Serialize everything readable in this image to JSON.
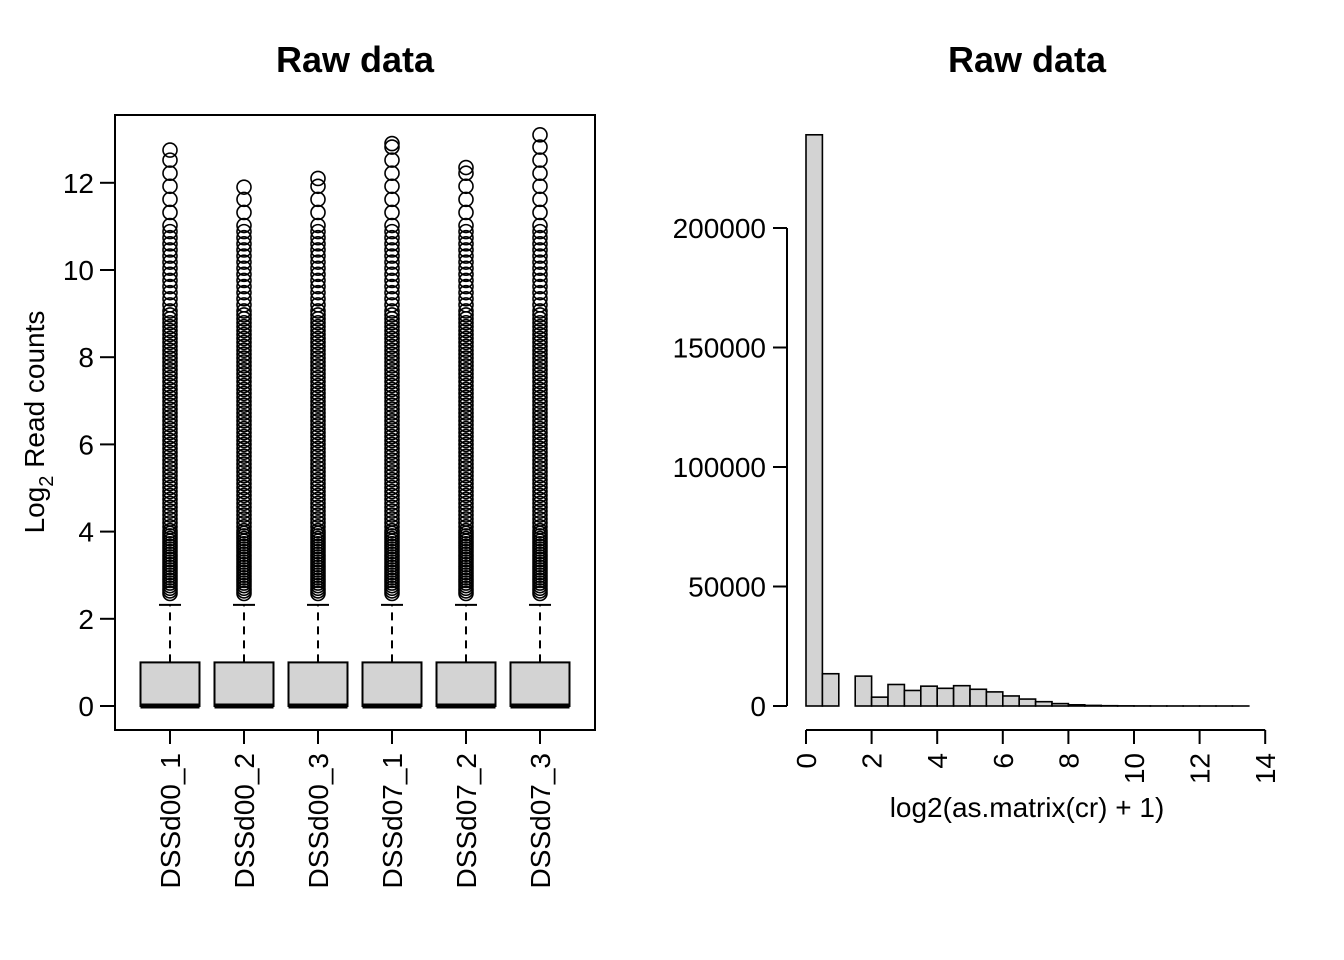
{
  "chart_data": [
    {
      "type": "box",
      "title": "Raw data",
      "ylabel_main": "Log",
      "ylabel_sub": "2",
      "ylabel_rest": " Read counts",
      "ylim": [
        0,
        13
      ],
      "yticks": [
        0,
        2,
        4,
        6,
        8,
        10,
        12
      ],
      "grid": false,
      "categories": [
        "DSSd00_1",
        "DSSd00_2",
        "DSSd00_3",
        "DSSd07_1",
        "DSSd07_2",
        "DSSd07_3"
      ],
      "series": [
        {
          "min": 0,
          "q1": 0,
          "median": 0,
          "q3": 1,
          "whisker_high": 2.32,
          "outlier_min": 2.58,
          "outlier_max": 12.75
        },
        {
          "min": 0,
          "q1": 0,
          "median": 0,
          "q3": 1,
          "whisker_high": 2.32,
          "outlier_min": 2.58,
          "outlier_max": 11.9
        },
        {
          "min": 0,
          "q1": 0,
          "median": 0,
          "q3": 1,
          "whisker_high": 2.32,
          "outlier_min": 2.58,
          "outlier_max": 12.1
        },
        {
          "min": 0,
          "q1": 0,
          "median": 0,
          "q3": 1,
          "whisker_high": 2.32,
          "outlier_min": 2.58,
          "outlier_max": 12.9
        },
        {
          "min": 0,
          "q1": 0,
          "median": 0,
          "q3": 1,
          "whisker_high": 2.32,
          "outlier_min": 2.58,
          "outlier_max": 12.35
        },
        {
          "min": 0,
          "q1": 0,
          "median": 0,
          "q3": 1,
          "whisker_high": 2.32,
          "outlier_min": 2.58,
          "outlier_max": 13.1
        }
      ]
    },
    {
      "type": "bar",
      "title": "Raw data",
      "xlabel": "log2(as.matrix(cr) + 1)",
      "ylabel": "",
      "xlim": [
        0,
        14
      ],
      "ylim": [
        0,
        240000
      ],
      "xticks": [
        0,
        2,
        4,
        6,
        8,
        10,
        12,
        14
      ],
      "yticks": [
        0,
        50000,
        100000,
        150000,
        200000
      ],
      "grid": false,
      "bin_width": 0.5,
      "bins_start": [
        0,
        0.5,
        1,
        1.5,
        2,
        2.5,
        3,
        3.5,
        4,
        4.5,
        5,
        5.5,
        6,
        6.5,
        7,
        7.5,
        8,
        8.5,
        9,
        9.5,
        10,
        10.5,
        11,
        11.5,
        12,
        12.5,
        13
      ],
      "values": [
        239000,
        13500,
        0,
        12500,
        3700,
        9000,
        6500,
        8300,
        7400,
        8500,
        7000,
        5900,
        4200,
        2900,
        1800,
        1000,
        500,
        250,
        120,
        60,
        30,
        15,
        8,
        4,
        2,
        1,
        1
      ]
    }
  ]
}
